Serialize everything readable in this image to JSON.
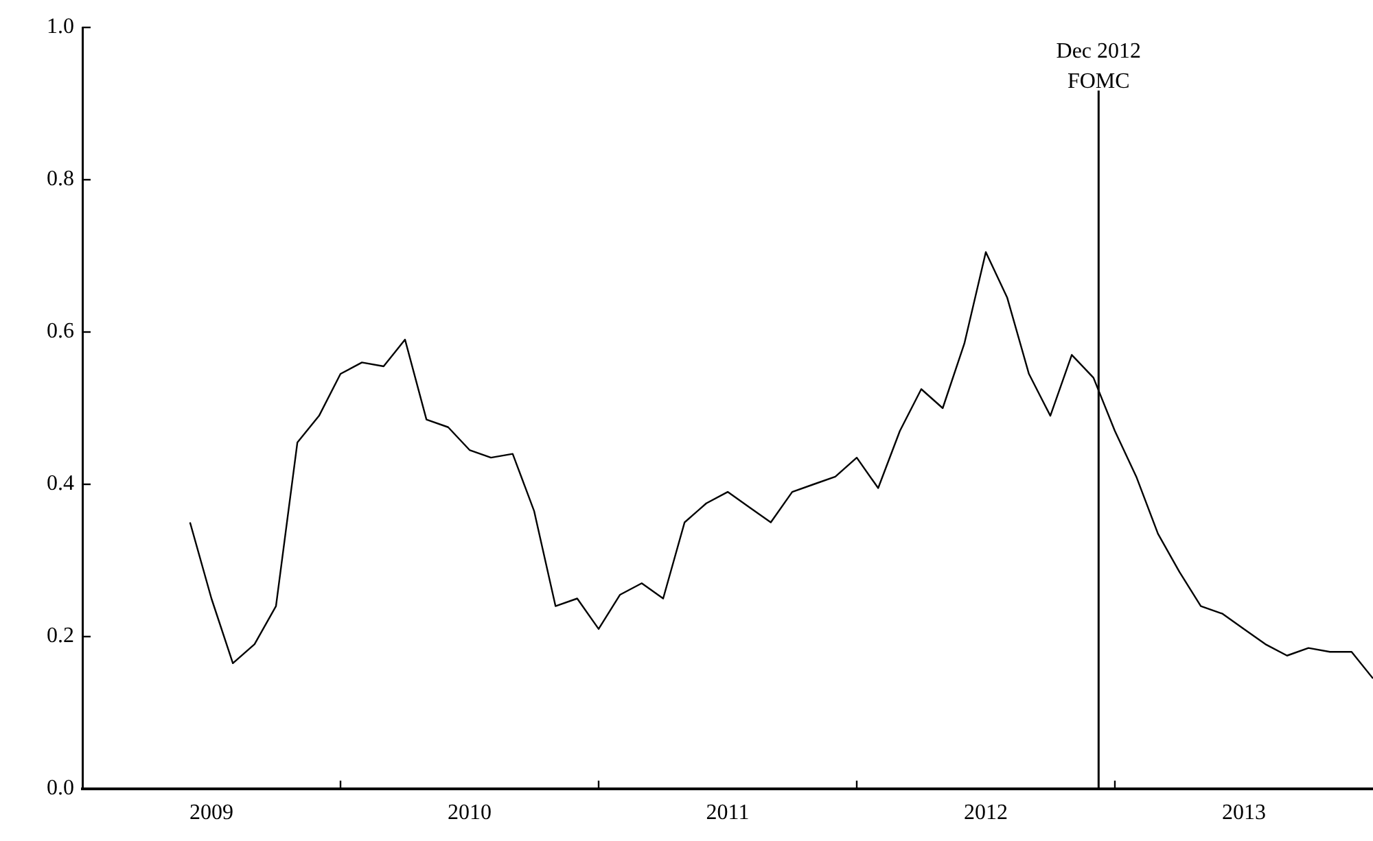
{
  "chart_data": {
    "type": "line",
    "x": [
      2009.417,
      2009.5,
      2009.583,
      2009.667,
      2009.75,
      2009.833,
      2009.917,
      2010,
      2010.083,
      2010.167,
      2010.25,
      2010.333,
      2010.417,
      2010.5,
      2010.583,
      2010.667,
      2010.75,
      2010.833,
      2010.917,
      2011,
      2011.083,
      2011.167,
      2011.25,
      2011.333,
      2011.417,
      2011.5,
      2011.583,
      2011.667,
      2011.75,
      2011.833,
      2011.917,
      2012,
      2012.083,
      2012.167,
      2012.25,
      2012.333,
      2012.417,
      2012.5,
      2012.583,
      2012.667,
      2012.75,
      2012.833,
      2012.917,
      2013,
      2013.083,
      2013.167,
      2013.25,
      2013.333,
      2013.417,
      2013.5,
      2013.583,
      2013.667,
      2013.75,
      2013.833,
      2013.917,
      2014
    ],
    "series": [
      {
        "color": "#000000",
        "values": [
          0.35,
          0.25,
          0.165,
          0.19,
          0.24,
          0.455,
          0.49,
          0.545,
          0.56,
          0.555,
          0.59,
          0.485,
          0.475,
          0.445,
          0.435,
          0.44,
          0.365,
          0.24,
          0.25,
          0.21,
          0.255,
          0.27,
          0.25,
          0.35,
          0.375,
          0.39,
          0.37,
          0.35,
          0.39,
          0.4,
          0.41,
          0.435,
          0.395,
          0.47,
          0.525,
          0.5,
          0.585,
          0.705,
          0.645,
          0.545,
          0.49,
          0.57,
          0.54,
          0.47,
          0.41,
          0.335,
          0.285,
          0.24,
          0.23,
          0.21,
          0.19,
          0.175,
          0.185,
          0.18,
          0.18,
          0.145
        ]
      }
    ],
    "xlim": [
      2009,
      2014
    ],
    "xticks": [
      {
        "value": 2009.5,
        "label": "2009"
      },
      {
        "value": 2010,
        "label": null
      },
      {
        "value": 2010.5,
        "label": "2010"
      },
      {
        "value": 2011,
        "label": null
      },
      {
        "value": 2011.5,
        "label": "2011"
      },
      {
        "value": 2012,
        "label": null
      },
      {
        "value": 2012.5,
        "label": "2012"
      },
      {
        "value": 2013,
        "label": null
      },
      {
        "value": 2013.5,
        "label": "2013"
      }
    ],
    "ylim": [
      0,
      1
    ],
    "yticks": [
      {
        "value": 0,
        "label": "0.0"
      },
      {
        "value": 0.2,
        "label": "0.2"
      },
      {
        "value": 0.4,
        "label": "0.4"
      },
      {
        "value": 0.6,
        "label": "0.6"
      },
      {
        "value": 0.8,
        "label": "0.8"
      },
      {
        "value": 1,
        "label": "1.0"
      }
    ],
    "ref_lines": [
      {
        "axis": "x",
        "value": 2012.937,
        "label": "Dec 2012\nFOMC",
        "color": "#000000"
      }
    ],
    "grid": false,
    "legend": false,
    "marker": "none",
    "line_style": "solid"
  }
}
